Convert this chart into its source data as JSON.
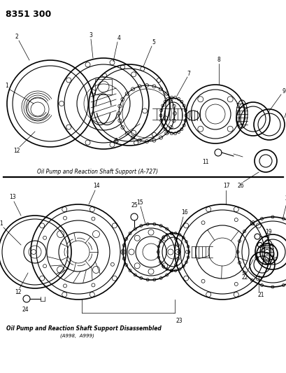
{
  "title": "8351 300",
  "bg_color": "#ffffff",
  "caption1": "Oil Pump and Reaction Shaft Support (A-727)",
  "caption2": "Oil Pump and Reaction Shaft Support Disassembled",
  "caption2b": "(A998,  A999)",
  "figsize": [
    4.1,
    5.33
  ],
  "dpi": 100
}
